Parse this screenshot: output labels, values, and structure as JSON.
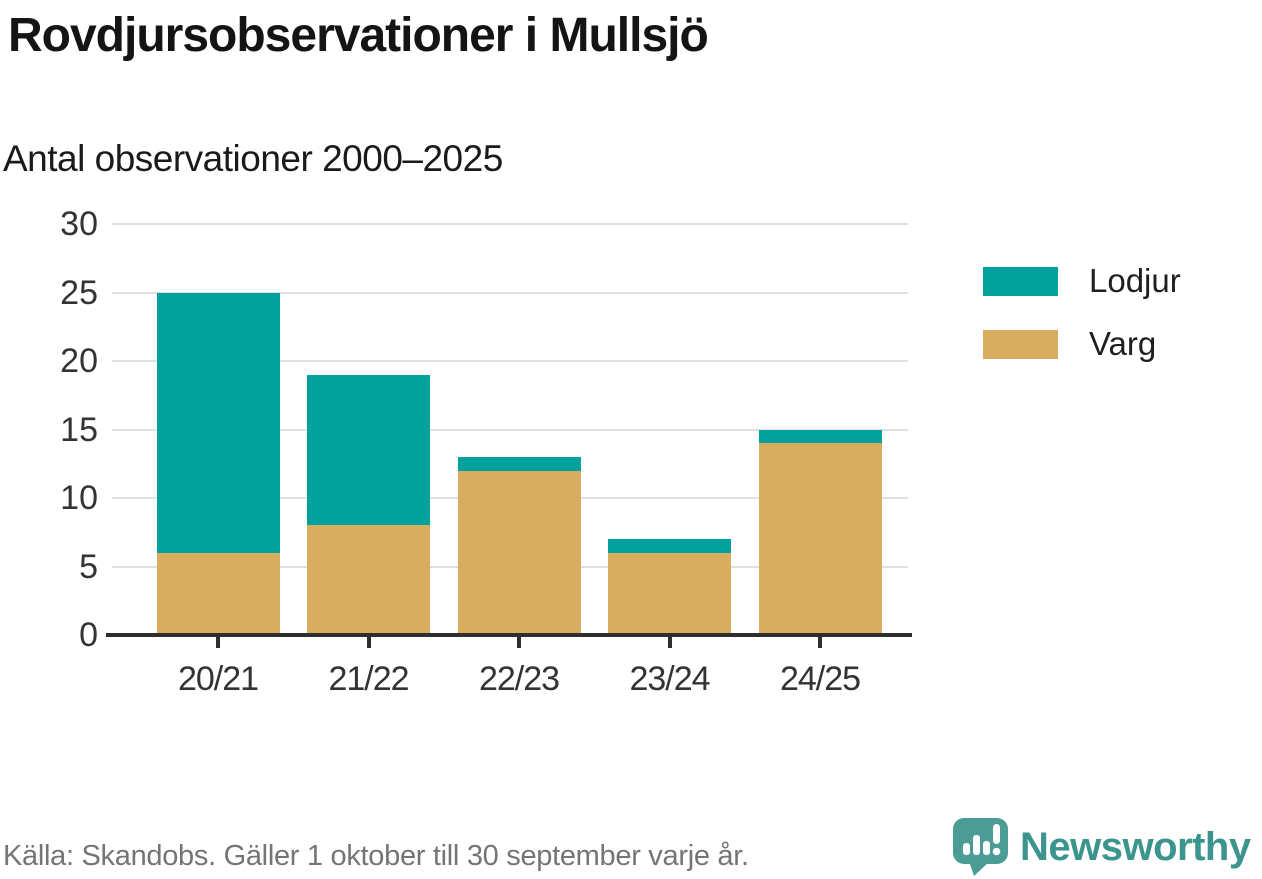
{
  "header": {
    "title": "Rovdjursobservationer i Mullsjö",
    "subtitle": "Antal observationer 2000–2025"
  },
  "chart_data": {
    "type": "bar",
    "stacked": true,
    "title": "Rovdjursobservationer i Mullsjö",
    "subtitle": "Antal observationer 2000–2025",
    "categories": [
      "20/21",
      "21/22",
      "22/23",
      "23/24",
      "24/25"
    ],
    "series": [
      {
        "name": "Varg",
        "color": "#D9AD5F",
        "values": [
          6,
          8,
          12,
          6,
          14
        ]
      },
      {
        "name": "Lodjur",
        "color": "#00A29B",
        "values": [
          19,
          11,
          1,
          1,
          1
        ]
      }
    ],
    "totals": [
      25,
      19,
      13,
      7,
      15
    ],
    "xlabel": "",
    "ylabel": "",
    "ylim": [
      0,
      30
    ],
    "yticks": [
      0,
      5,
      10,
      15,
      20,
      25,
      30
    ],
    "grid": "horizontal",
    "legend_position": "right"
  },
  "legend": {
    "items": [
      {
        "label": "Lodjur",
        "color": "#00A29B"
      },
      {
        "label": "Varg",
        "color": "#D9AD5F"
      }
    ]
  },
  "footer": {
    "source": "Källa: Skandobs. Gäller 1 oktober till 30 september varje år.",
    "brand": "Newsworthy"
  },
  "colors": {
    "lodjur": "#00A29B",
    "varg": "#D9AD5F",
    "axis": "#2e2e2e",
    "gridline": "#e0e0e0",
    "text": "#333333",
    "source_text": "#757575",
    "brand_teal": "#3C948E",
    "icon_teal": "#4A9C95"
  }
}
